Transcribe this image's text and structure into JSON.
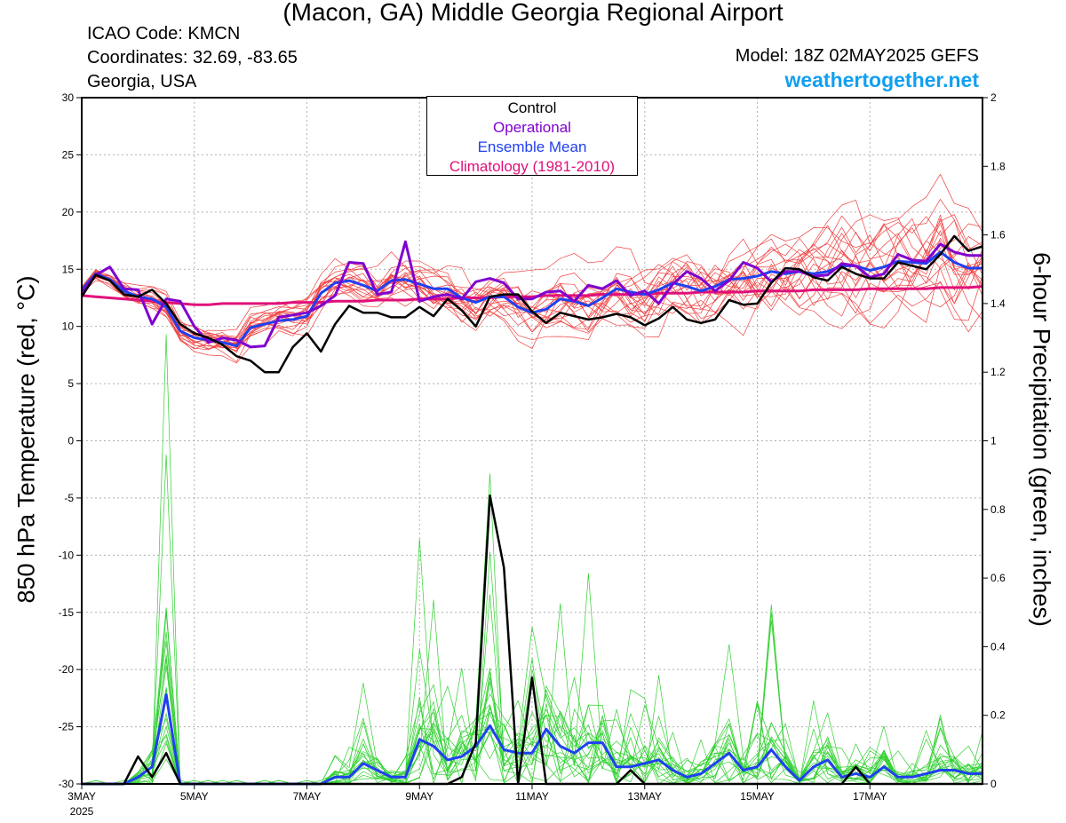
{
  "header": {
    "title": "(Macon, GA) Middle Georgia Regional Airport",
    "icao": "ICAO Code: KMCN",
    "coords": "Coordinates: 32.69, -83.65",
    "region": "Georgia, USA",
    "model": "Model: 18Z 02MAY2025 GEFS",
    "site": "weathertogether.net"
  },
  "colors": {
    "control": "#000000",
    "operational": "#8000d0",
    "ensemble_mean": "#2040f0",
    "climatology": "#e0107a",
    "member_temp": "#f04040",
    "member_precip": "#30d030",
    "site": "#10a0f0"
  },
  "chart_data": {
    "type": "line",
    "title": "",
    "ylabel": "850 hPa Temperature (red, °C)",
    "y2label": "6-hour Precipitation (green, inches)",
    "xlim": [
      0,
      64
    ],
    "ylim": [
      -30,
      30
    ],
    "y2lim": [
      0,
      2
    ],
    "yticks": [
      -30,
      -25,
      -20,
      -15,
      -10,
      -5,
      0,
      5,
      10,
      15,
      20,
      25,
      30
    ],
    "y2ticks": [
      "0",
      "0.2",
      "0.4",
      "0.6",
      "0.8",
      "1",
      "1.2",
      "1.4",
      "1.6",
      "1.8",
      "2"
    ],
    "x_ticks": [
      {
        "x": 0,
        "label": "3MAY",
        "sub": "2025"
      },
      {
        "x": 8,
        "label": "5MAY",
        "sub": ""
      },
      {
        "x": 16,
        "label": "7MAY",
        "sub": ""
      },
      {
        "x": 24,
        "label": "9MAY",
        "sub": ""
      },
      {
        "x": 32,
        "label": "11MAY",
        "sub": ""
      },
      {
        "x": 40,
        "label": "13MAY",
        "sub": ""
      },
      {
        "x": 48,
        "label": "15MAY",
        "sub": ""
      },
      {
        "x": 56,
        "label": "17MAY",
        "sub": ""
      }
    ],
    "grid": true,
    "legend_position": "top-center",
    "legend": [
      {
        "label": "Control",
        "color": "#000000"
      },
      {
        "label": "Operational",
        "color": "#8000d0"
      },
      {
        "label": "Ensemble Mean",
        "color": "#2040f0"
      },
      {
        "label": "Climatology (1981-2010)",
        "color": "#e0107a"
      }
    ],
    "series": {
      "control_temp": [
        12.6,
        14.5,
        14.0,
        12.8,
        12.6,
        13.2,
        12.0,
        10.2,
        9.4,
        9.0,
        8.4,
        7.4,
        7.0,
        6.0,
        6.0,
        8.2,
        9.4,
        7.8,
        10.2,
        11.8,
        11.2,
        11.2,
        10.8,
        10.8,
        11.7,
        10.9,
        12.4,
        11.4,
        10.0,
        12.6,
        12.8,
        12.8,
        11.3,
        10.3,
        11.2,
        10.9,
        10.6,
        10.8,
        11.1,
        10.8,
        10.1,
        10.7,
        11.7,
        10.6,
        10.3,
        10.6,
        12.3,
        11.9,
        12.0,
        13.8,
        15.1,
        15.0,
        14.3,
        14.0,
        15.2,
        14.6,
        14.2,
        14.2,
        15.6,
        15.3,
        15.0,
        16.3,
        17.9,
        16.6,
        17.0
      ],
      "operational_temp": [
        13.0,
        14.5,
        15.2,
        13.3,
        13.2,
        10.2,
        12.4,
        12.2,
        10.0,
        8.6,
        9.0,
        8.8,
        8.2,
        8.3,
        10.8,
        11.0,
        11.2,
        11.8,
        12.7,
        15.6,
        15.5,
        12.8,
        13.0,
        17.4,
        12.2,
        12.6,
        12.8,
        12.4,
        13.9,
        14.2,
        13.8,
        12.4,
        12.4,
        13.0,
        13.1,
        12.2,
        13.6,
        13.3,
        14.0,
        12.7,
        13.1,
        12.0,
        13.7,
        14.8,
        14.2,
        13.1,
        14.0,
        15.6,
        15.1,
        13.9,
        14.8,
        14.8,
        14.4,
        14.5,
        15.5,
        15.3,
        14.3,
        14.6,
        16.3,
        15.8,
        15.7,
        17.2,
        16.5,
        16.2,
        16.2
      ],
      "mean_temp": [
        13.2,
        14.6,
        14.1,
        13.1,
        12.6,
        12.4,
        11.7,
        9.6,
        9.0,
        8.8,
        8.6,
        8.3,
        9.9,
        10.2,
        10.5,
        10.6,
        10.9,
        12.9,
        13.8,
        14.0,
        13.6,
        13.1,
        14.0,
        14.1,
        13.7,
        13.3,
        13.3,
        12.5,
        12.1,
        12.6,
        12.6,
        11.7,
        11.2,
        11.5,
        12.4,
        12.2,
        11.8,
        12.5,
        13.3,
        13.0,
        12.8,
        13.2,
        13.8,
        13.5,
        13.1,
        13.5,
        14.1,
        14.2,
        14.4,
        14.8,
        14.6,
        14.8,
        14.6,
        14.8,
        15.3,
        15.3,
        14.9,
        15.2,
        15.7,
        15.6,
        15.5,
        16.5,
        15.6,
        15.1,
        15.1
      ],
      "clim_temp": [
        12.7,
        12.6,
        12.5,
        12.4,
        12.3,
        12.2,
        12.1,
        12.0,
        11.9,
        11.9,
        12.0,
        12.0,
        12.0,
        12.0,
        12.0,
        12.1,
        12.1,
        12.1,
        12.2,
        12.2,
        12.2,
        12.3,
        12.3,
        12.3,
        12.4,
        12.4,
        12.4,
        12.5,
        12.5,
        12.5,
        12.6,
        12.6,
        12.6,
        12.7,
        12.7,
        12.7,
        12.7,
        12.8,
        12.8,
        12.8,
        12.8,
        12.9,
        12.9,
        12.9,
        13.0,
        13.0,
        13.0,
        13.0,
        13.1,
        13.1,
        13.1,
        13.1,
        13.2,
        13.2,
        13.2,
        13.2,
        13.3,
        13.3,
        13.3,
        13.3,
        13.3,
        13.4,
        13.4,
        13.4,
        13.5
      ],
      "control_precip": [
        0,
        0,
        0,
        0,
        0.08,
        0.02,
        0.09,
        0,
        0,
        0,
        0,
        0,
        0,
        0,
        0,
        0,
        0,
        0,
        0,
        0,
        0,
        0,
        0,
        0,
        0,
        0,
        0,
        0.02,
        0.12,
        0.84,
        0.63,
        0,
        0.31,
        0,
        0,
        0,
        0,
        0,
        0,
        0.04,
        0,
        0,
        0,
        0,
        0,
        0,
        0,
        0,
        0,
        0,
        0,
        0,
        0,
        0,
        0,
        0.05,
        0,
        0,
        0,
        0,
        0,
        0,
        0,
        0,
        0
      ],
      "mean_precip": [
        0,
        0,
        0,
        0,
        0.02,
        0.05,
        0.26,
        0,
        0,
        0,
        0,
        0,
        0,
        0,
        0,
        0,
        0,
        0,
        0.02,
        0.02,
        0.06,
        0.04,
        0.02,
        0.02,
        0.13,
        0.11,
        0.07,
        0.08,
        0.11,
        0.17,
        0.1,
        0.09,
        0.09,
        0.16,
        0.11,
        0.09,
        0.12,
        0.12,
        0.05,
        0.05,
        0.06,
        0.07,
        0.04,
        0.02,
        0.03,
        0.06,
        0.09,
        0.04,
        0.05,
        0.1,
        0.05,
        0.01,
        0.05,
        0.07,
        0.02,
        0.03,
        0.02,
        0.05,
        0.02,
        0.02,
        0.03,
        0.04,
        0.04,
        0.03,
        0.03
      ]
    }
  }
}
